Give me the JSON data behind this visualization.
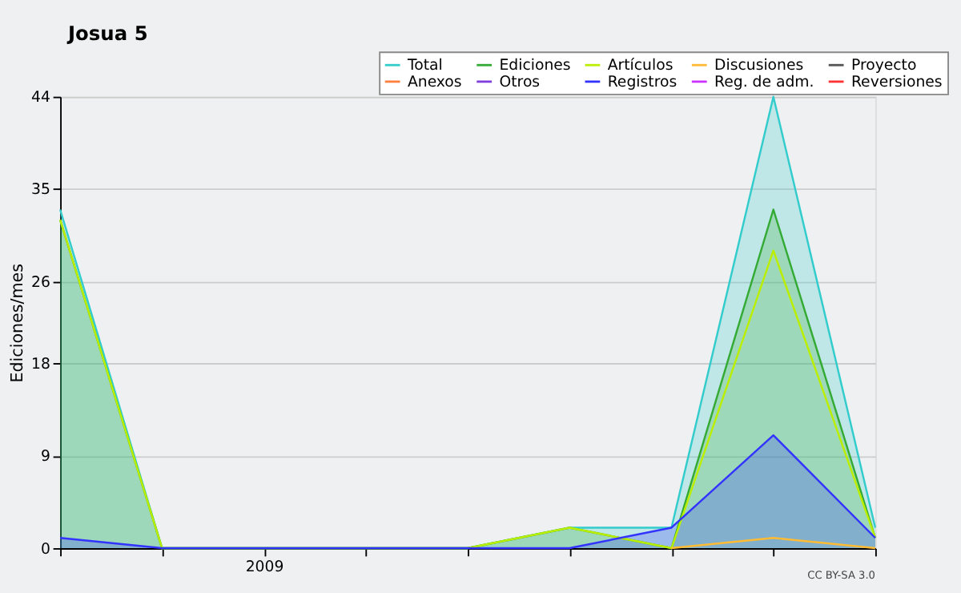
{
  "chart_data": {
    "type": "area",
    "title": "Josua 5",
    "ylabel": "Ediciones/mes",
    "categories": [
      null,
      null,
      "2009",
      null,
      null,
      null,
      null,
      null,
      null
    ],
    "ylim": [
      0,
      44
    ],
    "yticks": [
      0,
      9,
      18,
      26,
      35,
      44
    ],
    "grid": "y",
    "legend": "top right",
    "line_style": "solid",
    "marker": "none",
    "annotations": [
      "CC BY-SA 3.0"
    ],
    "series": [
      {
        "name": "Total",
        "color": "#33cccc",
        "values": [
          33,
          0,
          0,
          0,
          0,
          2,
          2,
          44,
          2
        ]
      },
      {
        "name": "Ediciones",
        "color": "#33aa33",
        "values": [
          32,
          0,
          0,
          0,
          0,
          2,
          0,
          33,
          1
        ]
      },
      {
        "name": "Artículos",
        "type": "line",
        "color": "#bbee00",
        "values": [
          32,
          0,
          0,
          0,
          0,
          2,
          0,
          29,
          1
        ]
      },
      {
        "name": "Discusiones",
        "type": "line",
        "color": "#ffbb33",
        "values": [
          null,
          null,
          null,
          null,
          null,
          null,
          0,
          1,
          0
        ]
      },
      {
        "name": "Proyecto",
        "type": "line",
        "color": "#555555",
        "values": [
          null,
          null,
          null,
          null,
          null,
          null,
          null,
          null,
          null
        ]
      },
      {
        "name": "Anexos",
        "type": "line",
        "color": "#ff7f3f",
        "values": [
          null,
          null,
          null,
          null,
          null,
          null,
          null,
          null,
          null
        ]
      },
      {
        "name": "Otros",
        "type": "line",
        "color": "#7f3fdf",
        "values": [
          null,
          null,
          null,
          null,
          null,
          null,
          null,
          null,
          null
        ]
      },
      {
        "name": "Registros",
        "color": "#3333ff",
        "values": [
          1,
          0,
          0,
          0,
          0,
          0,
          2,
          11,
          1
        ]
      },
      {
        "name": "Reg. de adm.",
        "type": "line",
        "color": "#cc33ff",
        "values": [
          null,
          null,
          null,
          null,
          null,
          null,
          null,
          null,
          null
        ]
      },
      {
        "name": "Reversiones",
        "type": "line",
        "color": "#ff3333",
        "values": [
          null,
          null,
          null,
          null,
          null,
          null,
          null,
          null,
          null
        ]
      }
    ]
  }
}
